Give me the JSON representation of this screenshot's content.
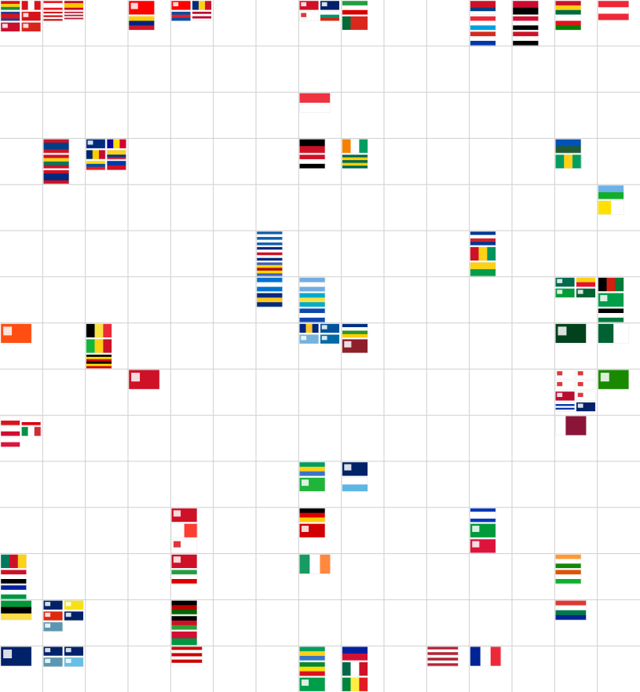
{
  "grid": {
    "columns": 15,
    "rows": 15,
    "line_color": "#cfcfcf",
    "background": "#ffffff"
  },
  "flags": [
    {
      "cell": [
        0,
        0
      ],
      "code": "eu-mix-1"
    },
    {
      "cell": [
        0,
        0
      ],
      "code": "ca"
    },
    {
      "cell": [
        0,
        0
      ],
      "code": "kh"
    },
    {
      "cell": [
        0,
        0
      ],
      "code": "ch"
    },
    {
      "cell": [
        0,
        0
      ],
      "code": "to"
    },
    {
      "cell": [
        0,
        0
      ],
      "code": "vn"
    },
    {
      "cell": [
        1,
        0
      ],
      "code": "lb"
    },
    {
      "cell": [
        1,
        0
      ],
      "code": "es"
    },
    {
      "cell": [
        1,
        0
      ],
      "code": "pr"
    },
    {
      "cell": [
        1,
        0
      ],
      "code": "us-stripes"
    },
    {
      "cell": [
        3,
        0
      ],
      "code": "tw"
    },
    {
      "cell": [
        3,
        0
      ],
      "code": "ve"
    },
    {
      "cell": [
        4,
        0
      ],
      "code": "tw"
    },
    {
      "cell": [
        4,
        0
      ],
      "code": "ro"
    },
    {
      "cell": [
        4,
        0
      ],
      "code": "kp"
    },
    {
      "cell": [
        4,
        0
      ],
      "code": "lr"
    },
    {
      "cell": [
        7,
        0
      ],
      "code": "bh"
    },
    {
      "cell": [
        7,
        0
      ],
      "code": "gb"
    },
    {
      "cell": [
        7,
        0
      ],
      "code": "ge"
    },
    {
      "cell": [
        7,
        0
      ],
      "code": "bg"
    },
    {
      "cell": [
        8,
        0
      ],
      "code": "ir"
    },
    {
      "cell": [
        8,
        0
      ],
      "code": "pt"
    },
    {
      "cell": [
        11,
        0
      ],
      "code": "ki"
    },
    {
      "cell": [
        11,
        0
      ],
      "code": "lu"
    },
    {
      "cell": [
        11,
        0
      ],
      "code": "py"
    },
    {
      "cell": [
        12,
        0
      ],
      "code": "ao"
    },
    {
      "cell": [
        12,
        0
      ],
      "code": "sd"
    },
    {
      "cell": [
        12,
        0
      ],
      "code": "sy"
    },
    {
      "cell": [
        13,
        0
      ],
      "code": "gh"
    },
    {
      "cell": [
        13,
        0
      ],
      "code": "om"
    },
    {
      "cell": [
        14,
        0
      ],
      "code": "at"
    },
    {
      "cell": [
        7,
        2
      ],
      "code": "sg"
    },
    {
      "cell": [
        1,
        3
      ],
      "code": "bz"
    },
    {
      "cell": [
        1,
        3
      ],
      "code": "gd"
    },
    {
      "cell": [
        1,
        3
      ],
      "code": "gu"
    },
    {
      "cell": [
        2,
        3
      ],
      "code": "as"
    },
    {
      "cell": [
        2,
        3
      ],
      "code": "ad"
    },
    {
      "cell": [
        2,
        3
      ],
      "code": "td"
    },
    {
      "cell": [
        2,
        3
      ],
      "code": "co"
    },
    {
      "cell": [
        2,
        3
      ],
      "code": "ec"
    },
    {
      "cell": [
        2,
        3
      ],
      "code": "ph"
    },
    {
      "cell": [
        7,
        3
      ],
      "code": "pg"
    },
    {
      "cell": [
        7,
        3
      ],
      "code": "ye"
    },
    {
      "cell": [
        8,
        3
      ],
      "code": "ci"
    },
    {
      "cell": [
        8,
        3
      ],
      "code": "tg"
    },
    {
      "cell": [
        13,
        3
      ],
      "code": "sb"
    },
    {
      "cell": [
        13,
        3
      ],
      "code": "vc"
    },
    {
      "cell": [
        14,
        4
      ],
      "code": "dj"
    },
    {
      "cell": [
        14,
        4
      ],
      "code": "va"
    },
    {
      "cell": [
        6,
        5
      ],
      "code": "gr"
    },
    {
      "cell": [
        6,
        5
      ],
      "code": "cr"
    },
    {
      "cell": [
        6,
        5
      ],
      "code": "sz"
    },
    {
      "cell": [
        11,
        5
      ],
      "code": "cv"
    },
    {
      "cell": [
        11,
        5
      ],
      "code": "gn"
    },
    {
      "cell": [
        11,
        5
      ],
      "code": "gw"
    },
    {
      "cell": [
        6,
        6
      ],
      "code": "hn"
    },
    {
      "cell": [
        6,
        6
      ],
      "code": "nr"
    },
    {
      "cell": [
        7,
        6
      ],
      "code": "ar"
    },
    {
      "cell": [
        7,
        6
      ],
      "code": "bs"
    },
    {
      "cell": [
        7,
        6
      ],
      "code": "sv"
    },
    {
      "cell": [
        13,
        6
      ],
      "code": "bd"
    },
    {
      "cell": [
        13,
        6
      ],
      "code": "bj"
    },
    {
      "cell": [
        13,
        6
      ],
      "code": "br"
    },
    {
      "cell": [
        13,
        6
      ],
      "code": "mr"
    },
    {
      "cell": [
        14,
        6
      ],
      "code": "af"
    },
    {
      "cell": [
        14,
        6
      ],
      "code": "gy"
    },
    {
      "cell": [
        14,
        6
      ],
      "code": "jo"
    },
    {
      "cell": [
        0,
        7
      ],
      "code": "bt"
    },
    {
      "cell": [
        2,
        7
      ],
      "code": "be"
    },
    {
      "cell": [
        2,
        7
      ],
      "code": "ml"
    },
    {
      "cell": [
        2,
        7
      ],
      "code": "ug"
    },
    {
      "cell": [
        7,
        7
      ],
      "code": "bb"
    },
    {
      "cell": [
        7,
        7
      ],
      "code": "is"
    },
    {
      "cell": [
        7,
        7
      ],
      "code": "fm"
    },
    {
      "cell": [
        7,
        7
      ],
      "code": "se"
    },
    {
      "cell": [
        8,
        7
      ],
      "code": "cf"
    },
    {
      "cell": [
        8,
        7
      ],
      "code": "lk"
    },
    {
      "cell": [
        13,
        7
      ],
      "code": "pk"
    },
    {
      "cell": [
        14,
        7
      ],
      "code": "dz"
    },
    {
      "cell": [
        3,
        8
      ],
      "code": "ag"
    },
    {
      "cell": [
        13,
        8
      ],
      "code": "cy"
    },
    {
      "cell": [
        13,
        8
      ],
      "code": "fo"
    },
    {
      "cell": [
        13,
        8
      ],
      "code": "fi"
    },
    {
      "cell": [
        13,
        8
      ],
      "code": "jp"
    },
    {
      "cell": [
        13,
        8
      ],
      "code": "no"
    },
    {
      "cell": [
        13,
        8
      ],
      "code": "kr"
    },
    {
      "cell": [
        13,
        8
      ],
      "code": "uy"
    },
    {
      "cell": [
        13,
        8
      ],
      "code": "vg"
    },
    {
      "cell": [
        14,
        8
      ],
      "code": "zm"
    },
    {
      "cell": [
        0,
        9
      ],
      "code": "cz"
    },
    {
      "cell": [
        0,
        9
      ],
      "code": "gi"
    },
    {
      "cell": [
        0,
        9
      ],
      "code": "gl"
    },
    {
      "cell": [
        0,
        9
      ],
      "code": "it"
    },
    {
      "cell": [
        0,
        9
      ],
      "code": "pl"
    },
    {
      "cell": [
        13,
        9
      ],
      "code": "qa"
    },
    {
      "cell": [
        7,
        10
      ],
      "code": "ga"
    },
    {
      "cell": [
        7,
        10
      ],
      "code": "tz"
    },
    {
      "cell": [
        8,
        10
      ],
      "code": "ms"
    },
    {
      "cell": [
        8,
        10
      ],
      "code": "sm"
    },
    {
      "cell": [
        4,
        11
      ],
      "code": "bi"
    },
    {
      "cell": [
        4,
        11
      ],
      "code": "mg"
    },
    {
      "cell": [
        4,
        11
      ],
      "code": "pa"
    },
    {
      "cell": [
        7,
        11
      ],
      "code": "de"
    },
    {
      "cell": [
        7,
        11
      ],
      "code": "mk"
    },
    {
      "cell": [
        11,
        11
      ],
      "code": "il"
    },
    {
      "cell": [
        11,
        11
      ],
      "code": "jm"
    },
    {
      "cell": [
        11,
        11
      ],
      "code": "np"
    },
    {
      "cell": [
        0,
        12
      ],
      "code": "cm"
    },
    {
      "cell": [
        0,
        12
      ],
      "code": "eg"
    },
    {
      "cell": [
        0,
        12
      ],
      "code": "ls"
    },
    {
      "cell": [
        4,
        12
      ],
      "code": "tt"
    },
    {
      "cell": [
        4,
        12
      ],
      "code": "ir"
    },
    {
      "cell": [
        7,
        12
      ],
      "code": "ie"
    },
    {
      "cell": [
        13,
        12
      ],
      "code": "in"
    },
    {
      "cell": [
        13,
        12
      ],
      "code": "ne"
    },
    {
      "cell": [
        0,
        13
      ],
      "code": "mz"
    },
    {
      "cell": [
        1,
        13
      ],
      "code": "au"
    },
    {
      "cell": [
        1,
        13
      ],
      "code": "bn"
    },
    {
      "cell": [
        1,
        13
      ],
      "code": "hk"
    },
    {
      "cell": [
        1,
        13
      ],
      "code": "nz"
    },
    {
      "cell": [
        1,
        13
      ],
      "code": "tv"
    },
    {
      "cell": [
        4,
        13
      ],
      "code": "ke"
    },
    {
      "cell": [
        4,
        13
      ],
      "code": "mw"
    },
    {
      "cell": [
        4,
        13
      ],
      "code": "vu"
    },
    {
      "cell": [
        13,
        13
      ],
      "code": "za"
    },
    {
      "cell": [
        0,
        14
      ],
      "code": "ky"
    },
    {
      "cell": [
        1,
        14
      ],
      "code": "au"
    },
    {
      "cell": [
        1,
        14
      ],
      "code": "ck"
    },
    {
      "cell": [
        1,
        14
      ],
      "code": "tv"
    },
    {
      "cell": [
        1,
        14
      ],
      "code": "fj"
    },
    {
      "cell": [
        4,
        14
      ],
      "code": "my"
    },
    {
      "cell": [
        7,
        14
      ],
      "code": "ga"
    },
    {
      "cell": [
        7,
        14
      ],
      "code": "et"
    },
    {
      "cell": [
        7,
        14
      ],
      "code": "kn"
    },
    {
      "cell": [
        8,
        14
      ],
      "code": "ht"
    },
    {
      "cell": [
        8,
        14
      ],
      "code": "mx"
    },
    {
      "cell": [
        8,
        14
      ],
      "code": "sn"
    },
    {
      "cell": [
        10,
        14
      ],
      "code": "us"
    },
    {
      "cell": [
        11,
        14
      ],
      "code": "fr"
    }
  ]
}
